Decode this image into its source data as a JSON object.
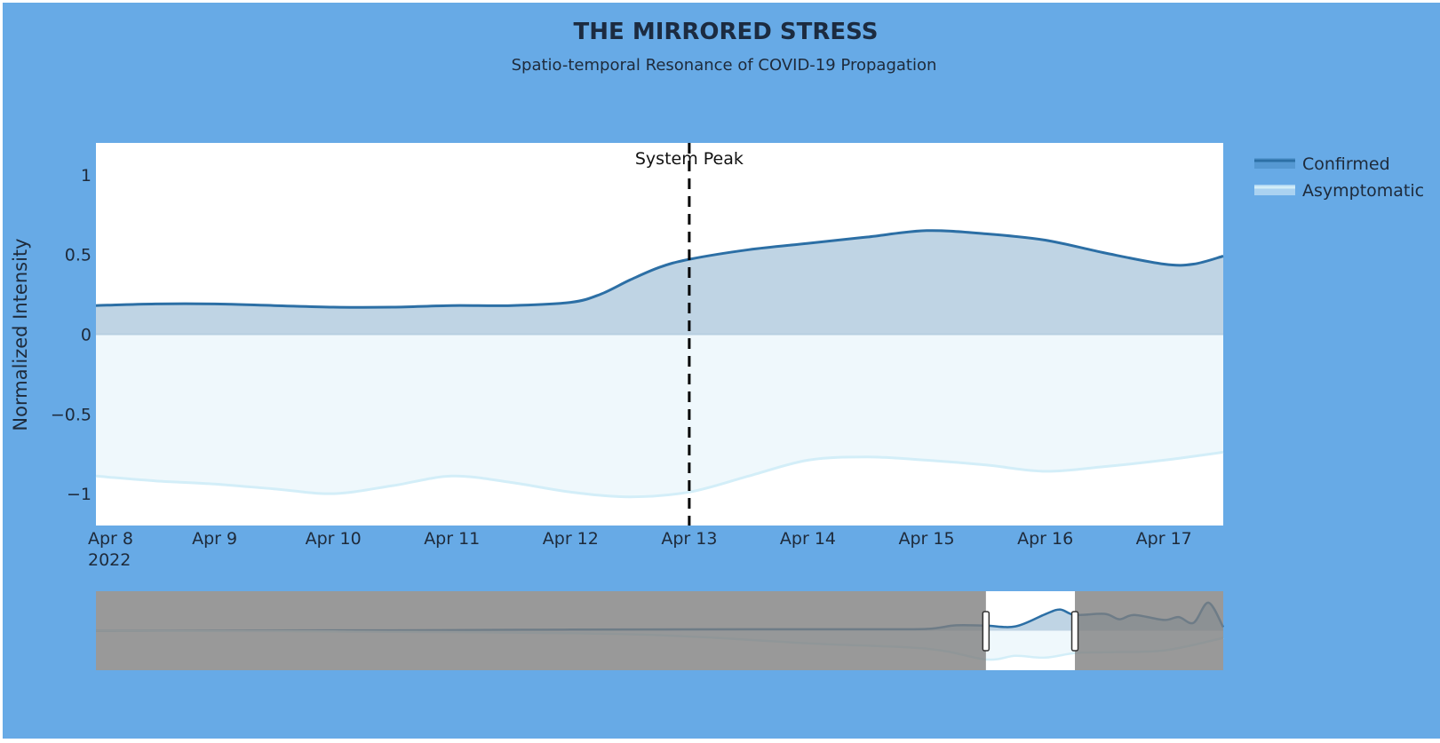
{
  "chart_data": {
    "type": "area",
    "title": "THE MIRRORED STRESS",
    "subtitle": "Spatio-temporal Resonance of COVID-19 Propagation",
    "ylabel": "Normalized Intensity",
    "xlabel": "",
    "ylim": [
      -1.2,
      1.2
    ],
    "xlim": [
      "2022-04-08",
      "2022-04-17T12:00"
    ],
    "yticks": [
      {
        "value": 1,
        "label": "1"
      },
      {
        "value": 0.5,
        "label": "0.5"
      },
      {
        "value": 0,
        "label": "0"
      },
      {
        "value": -0.5,
        "label": "−0.5"
      },
      {
        "value": -1,
        "label": "−1"
      }
    ],
    "xticks": [
      {
        "date": "2022-04-08",
        "label": "Apr 8",
        "sublabel": "2022"
      },
      {
        "date": "2022-04-09",
        "label": "Apr 9"
      },
      {
        "date": "2022-04-10",
        "label": "Apr 10"
      },
      {
        "date": "2022-04-11",
        "label": "Apr 11"
      },
      {
        "date": "2022-04-12",
        "label": "Apr 12"
      },
      {
        "date": "2022-04-13",
        "label": "Apr 13"
      },
      {
        "date": "2022-04-14",
        "label": "Apr 14"
      },
      {
        "date": "2022-04-15",
        "label": "Apr 15"
      },
      {
        "date": "2022-04-16",
        "label": "Apr 16"
      },
      {
        "date": "2022-04-17",
        "label": "Apr 17"
      }
    ],
    "series": [
      {
        "name": "Confirmed",
        "color": "#2c6fa5",
        "fill": "rgba(44,111,165,0.3)",
        "points": [
          [
            "2022-04-08",
            0.18
          ],
          [
            "2022-04-08T12:00",
            0.19
          ],
          [
            "2022-04-09",
            0.19
          ],
          [
            "2022-04-09T12:00",
            0.18
          ],
          [
            "2022-04-10",
            0.17
          ],
          [
            "2022-04-10T12:00",
            0.17
          ],
          [
            "2022-04-11",
            0.18
          ],
          [
            "2022-04-11T12:00",
            0.18
          ],
          [
            "2022-04-12",
            0.2
          ],
          [
            "2022-04-12T06:00",
            0.25
          ],
          [
            "2022-04-12T12:00",
            0.34
          ],
          [
            "2022-04-12T18:00",
            0.42
          ],
          [
            "2022-04-13",
            0.47
          ],
          [
            "2022-04-13T12:00",
            0.53
          ],
          [
            "2022-04-14",
            0.57
          ],
          [
            "2022-04-14T12:00",
            0.61
          ],
          [
            "2022-04-15",
            0.65
          ],
          [
            "2022-04-15T12:00",
            0.63
          ],
          [
            "2022-04-16",
            0.59
          ],
          [
            "2022-04-16T12:00",
            0.51
          ],
          [
            "2022-04-17",
            0.44
          ],
          [
            "2022-04-17T06:00",
            0.44
          ],
          [
            "2022-04-17T12:00",
            0.49
          ]
        ]
      },
      {
        "name": "Asymptomatic",
        "color": "#d3eef8",
        "fill": "rgba(225,243,250,0.55)",
        "points": [
          [
            "2022-04-08",
            -0.89
          ],
          [
            "2022-04-08T12:00",
            -0.92
          ],
          [
            "2022-04-09",
            -0.94
          ],
          [
            "2022-04-09T12:00",
            -0.97
          ],
          [
            "2022-04-10",
            -1.0
          ],
          [
            "2022-04-10T12:00",
            -0.95
          ],
          [
            "2022-04-11",
            -0.89
          ],
          [
            "2022-04-11T12:00",
            -0.93
          ],
          [
            "2022-04-12",
            -0.99
          ],
          [
            "2022-04-12T12:00",
            -1.02
          ],
          [
            "2022-04-13",
            -0.99
          ],
          [
            "2022-04-13T12:00",
            -0.89
          ],
          [
            "2022-04-14",
            -0.79
          ],
          [
            "2022-04-14T12:00",
            -0.77
          ],
          [
            "2022-04-15",
            -0.79
          ],
          [
            "2022-04-15T12:00",
            -0.82
          ],
          [
            "2022-04-16",
            -0.86
          ],
          [
            "2022-04-16T12:00",
            -0.83
          ],
          [
            "2022-04-17",
            -0.79
          ],
          [
            "2022-04-17T12:00",
            -0.74
          ]
        ]
      }
    ],
    "annotations": [
      {
        "type": "vline",
        "x": "2022-04-13",
        "label": "System Peak",
        "style": "dashed",
        "color": "#000000"
      }
    ],
    "legend": {
      "placement": "top-right"
    },
    "grid": false,
    "rangeslider": {
      "visible": true,
      "xlim": [
        "2022-04-08",
        "2022-04-27"
      ],
      "ylim": [
        -1.1,
        1.1
      ],
      "selected": [
        "2022-04-23",
        "2022-04-24T12:00"
      ],
      "confirmed": [
        [
          "2022-04-08",
          0.0
        ],
        [
          "2022-04-13",
          0.01
        ],
        [
          "2022-04-16",
          0.03
        ],
        [
          "2022-04-19",
          0.04
        ],
        [
          "2022-04-21",
          0.04
        ],
        [
          "2022-04-22",
          0.05
        ],
        [
          "2022-04-22T12:00",
          0.15
        ],
        [
          "2022-04-23",
          0.14
        ],
        [
          "2022-04-23T12:00",
          0.12
        ],
        [
          "2022-04-24",
          0.46
        ],
        [
          "2022-04-24T06:00",
          0.59
        ],
        [
          "2022-04-24T12:00",
          0.44
        ],
        [
          "2022-04-25",
          0.47
        ],
        [
          "2022-04-25T06:00",
          0.32
        ],
        [
          "2022-04-25T12:00",
          0.44
        ],
        [
          "2022-04-26",
          0.3
        ],
        [
          "2022-04-26T06:00",
          0.38
        ],
        [
          "2022-04-26T12:00",
          0.22
        ],
        [
          "2022-04-26T18:00",
          0.78
        ],
        [
          "2022-04-27",
          0.1
        ]
      ],
      "asymptomatic": [
        [
          "2022-04-08",
          0.0
        ],
        [
          "2022-04-12",
          -0.02
        ],
        [
          "2022-04-17",
          -0.1
        ],
        [
          "2022-04-20",
          -0.35
        ],
        [
          "2022-04-22",
          -0.5
        ],
        [
          "2022-04-23",
          -0.8
        ],
        [
          "2022-04-23T12:00",
          -0.7
        ],
        [
          "2022-04-24",
          -0.75
        ],
        [
          "2022-04-24T12:00",
          -0.62
        ],
        [
          "2022-04-25",
          -0.6
        ],
        [
          "2022-04-26",
          -0.55
        ],
        [
          "2022-04-27",
          -0.2
        ]
      ]
    }
  },
  "colors": {
    "paper_bg": "#67aae6",
    "plot_bg": "#ffffff",
    "title": "#1c2b40",
    "axis_text": "#1e2a3a",
    "zero_line": "#b7cfe0",
    "slider_mask": "rgba(128,128,128,0.8)"
  }
}
